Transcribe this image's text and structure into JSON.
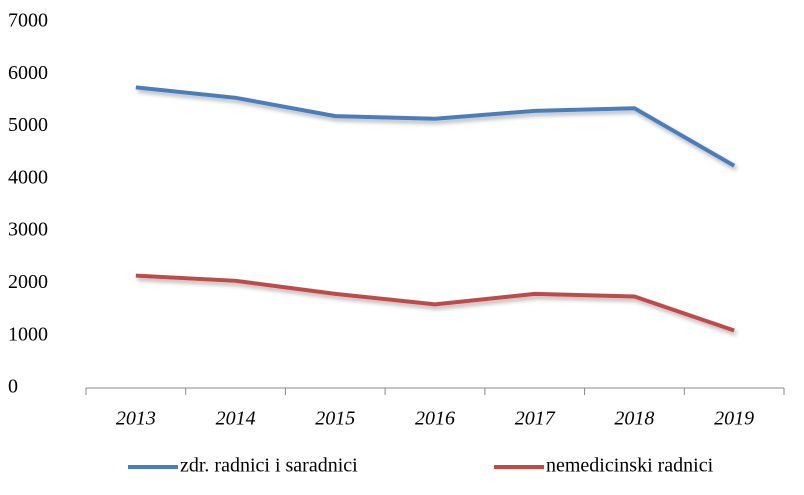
{
  "chart_data": {
    "type": "line",
    "categories": [
      "2013",
      "2014",
      "2015",
      "2016",
      "2017",
      "2018",
      "2019"
    ],
    "series": [
      {
        "name": "zdr. radnici i saradnici",
        "color": "#4a7ebb",
        "values": [
          5750,
          5550,
          5200,
          5150,
          5300,
          5350,
          4250
        ]
      },
      {
        "name": "nemedicinski radnici",
        "color": "#be4b48",
        "values": [
          2150,
          2050,
          1800,
          1600,
          1800,
          1750,
          1100
        ]
      }
    ],
    "ylim": [
      0,
      7000
    ],
    "yticks": [
      0,
      1000,
      2000,
      3000,
      4000,
      5000,
      6000,
      7000
    ],
    "grid": false,
    "legend": "bottom"
  }
}
